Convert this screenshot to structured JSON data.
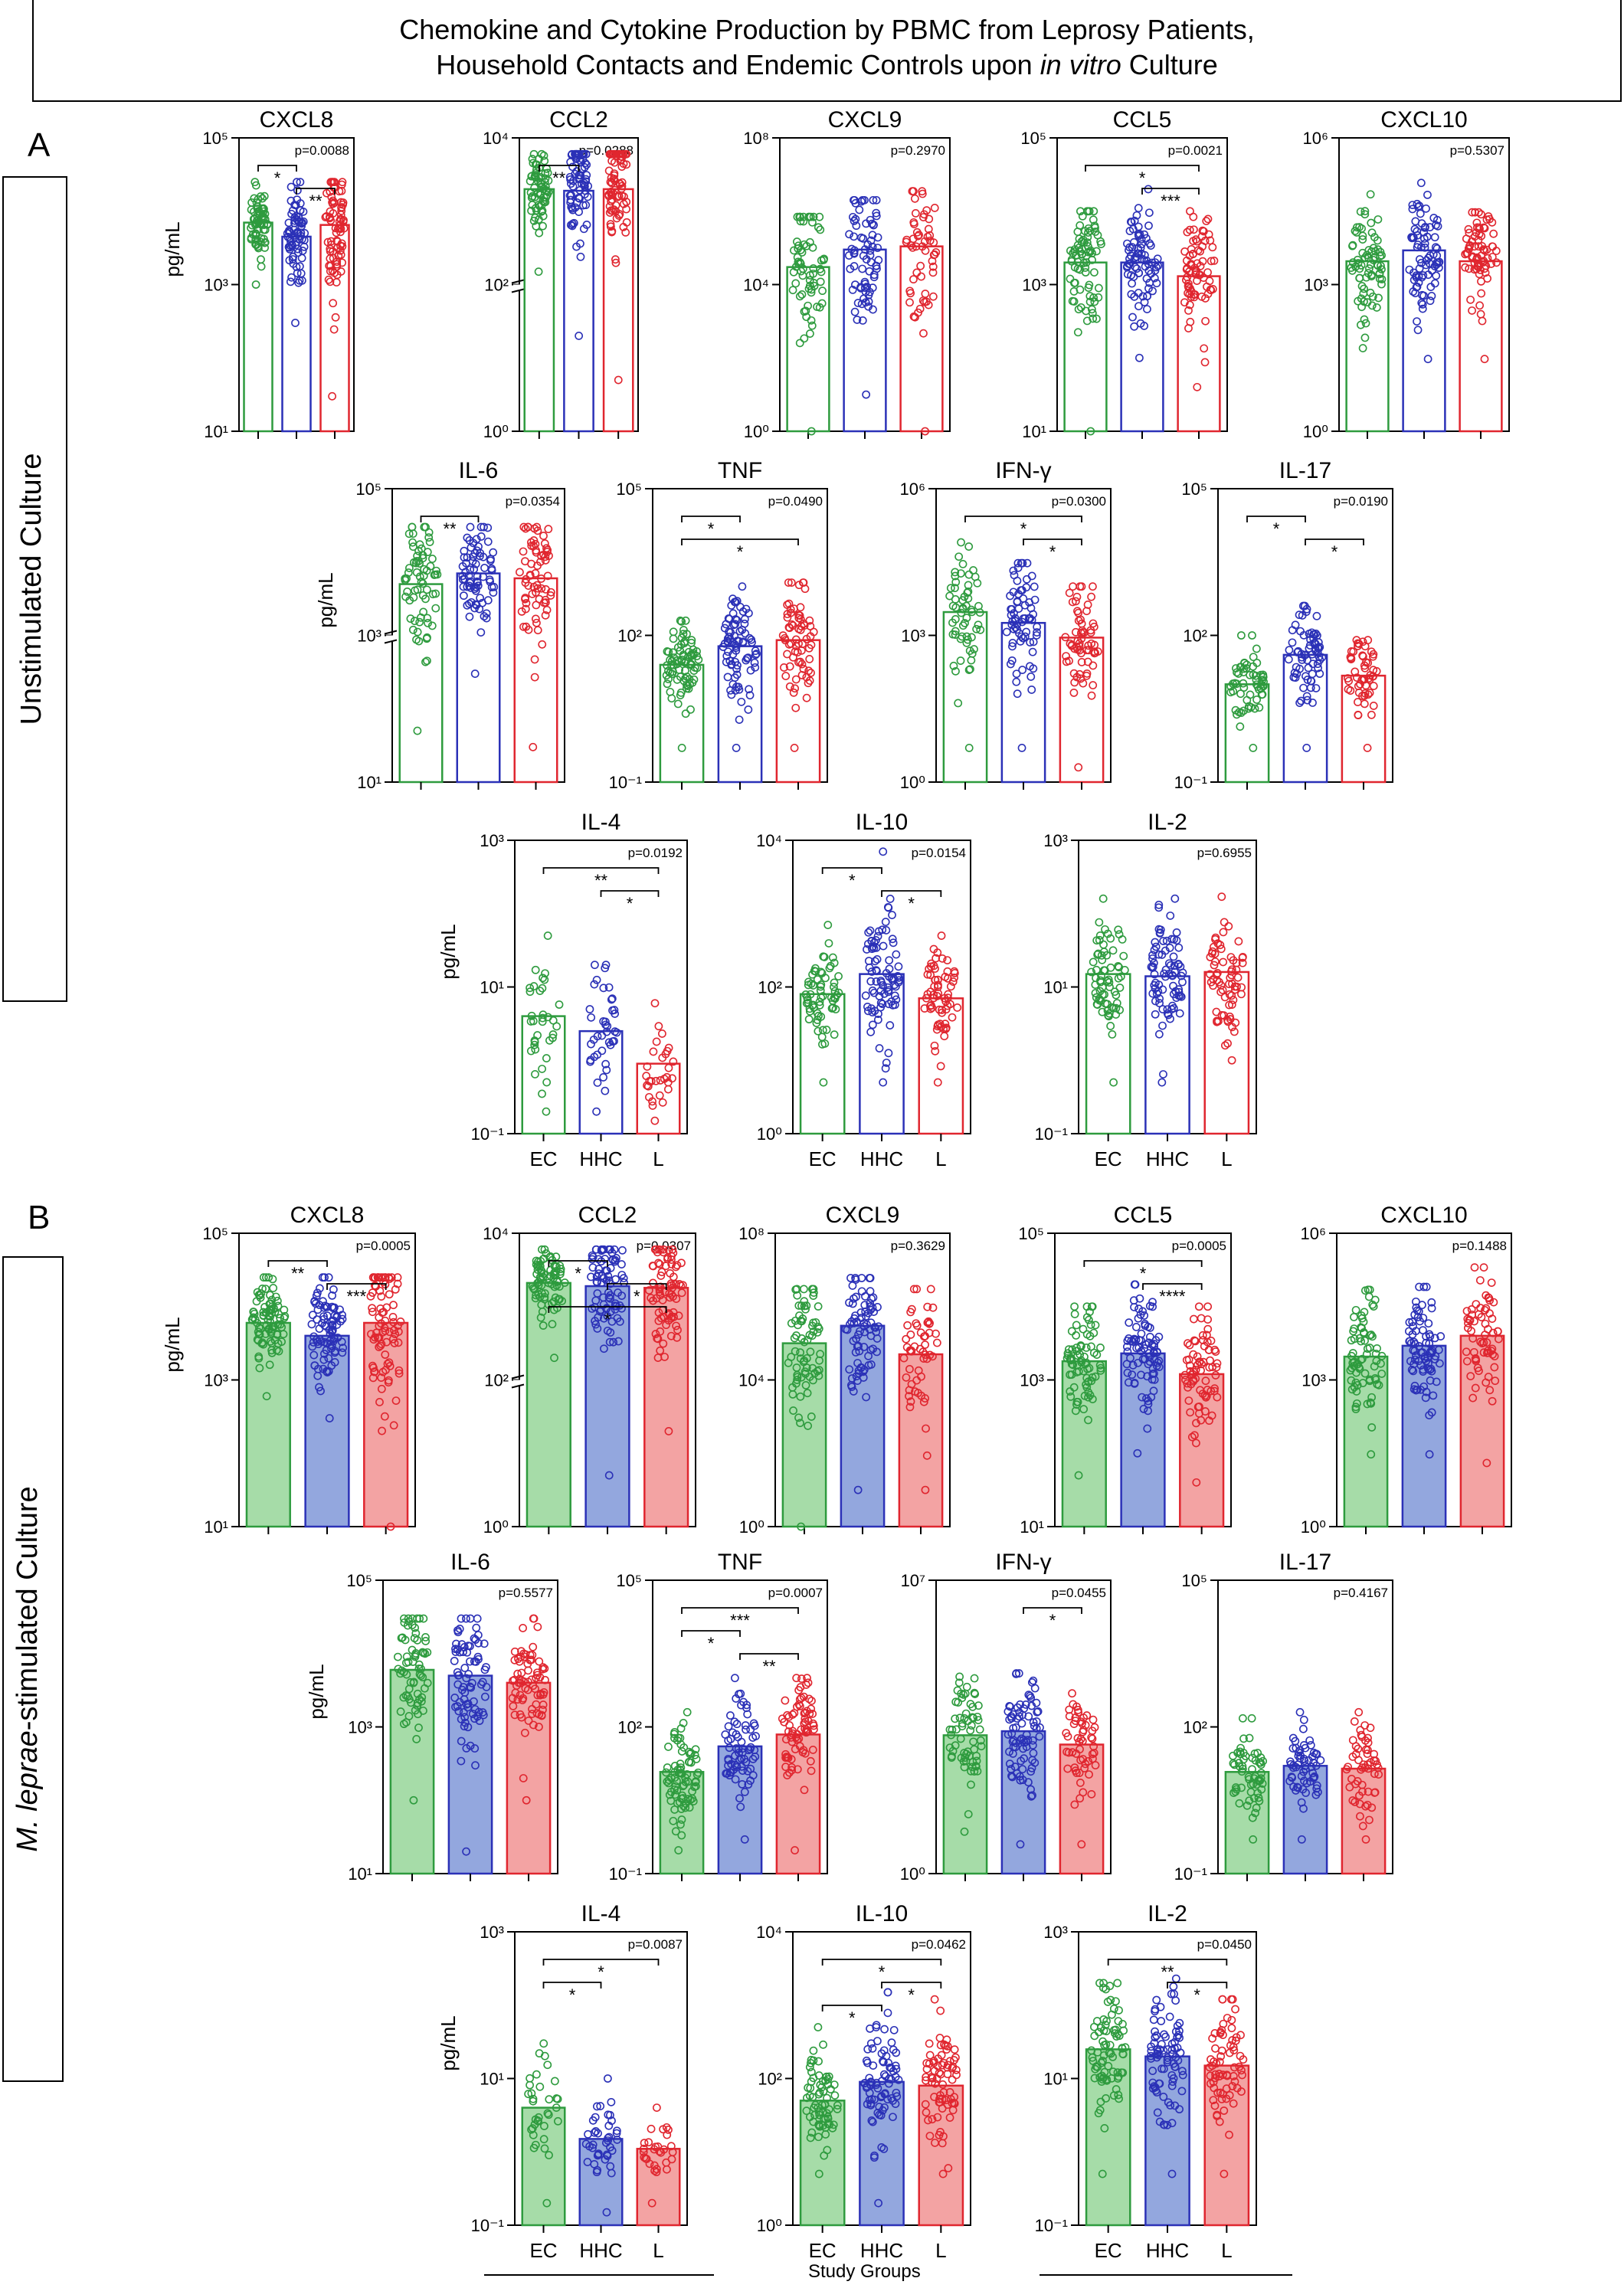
{
  "figure": {
    "title_line1": "Chemokine and Cytokine Production by PBMC from Leprosy Patients,",
    "title_line2_pre": "Household Contacts and Endemic Controls upon ",
    "title_line2_italic": "in vitro",
    "title_line2_post": " Culture",
    "section_a_letter": "A",
    "section_b_letter": "B",
    "section_a_label": "Unstimulated Culture",
    "section_b_label_italic": "M. leprae",
    "section_b_label_rest": "-stimulated Culture",
    "x_axis_title": "Study Groups",
    "y_unit": "pg/mL",
    "groups": [
      "EC",
      "HHC",
      "L"
    ],
    "colors": {
      "EC": "#2e9b3e",
      "HHC": "#2b31b7",
      "L": "#e0262f",
      "EC_fill": "#a6dca8",
      "HHC_fill": "#93a7de",
      "L_fill": "#f3a3a3"
    }
  },
  "chart_data": [
    {
      "type": "bar",
      "section": "A",
      "title": "CXCL8",
      "pval": "p=0.0088",
      "ymin_exp": 1,
      "ymax_exp": 5,
      "axis_break": false,
      "ylabel": true,
      "xlabels": false,
      "filled": false,
      "medians": [
        7000,
        4500,
        6500
      ],
      "spreads": [
        [
          1000,
          25000
        ],
        [
          300,
          25000
        ],
        [
          30,
          25000
        ]
      ],
      "n": [
        70,
        75,
        80
      ],
      "sig": [
        {
          "a": 0,
          "b": 1,
          "label": "*"
        },
        {
          "a": 1,
          "b": 2,
          "label": "**"
        }
      ]
    },
    {
      "type": "bar",
      "section": "A",
      "title": "CCL2",
      "pval": "p=0.0288",
      "ymin_exp": 0,
      "ymax_exp": 4,
      "axis_break": true,
      "ylabel": false,
      "xlabels": false,
      "filled": false,
      "medians": [
        2000,
        1900,
        2000
      ],
      "spreads": [
        [
          150,
          6000
        ],
        [
          20,
          6000
        ],
        [
          5,
          6000
        ]
      ],
      "n": [
        70,
        75,
        80
      ],
      "sig": [
        {
          "a": 0,
          "b": 1,
          "label": "**"
        }
      ]
    },
    {
      "type": "bar",
      "section": "A",
      "title": "CXCL9",
      "pval": "p=0.2970",
      "ymin_exp": 0,
      "ymax_exp": 8,
      "axis_break": false,
      "ylabel": false,
      "xlabels": false,
      "filled": false,
      "medians": [
        30000,
        90000,
        110000
      ],
      "spreads": [
        [
          1,
          700000
        ],
        [
          10,
          2000000
        ],
        [
          1,
          3500000
        ]
      ],
      "n": [
        70,
        75,
        55
      ],
      "sig": []
    },
    {
      "type": "bar",
      "section": "A",
      "title": "CCL5",
      "pval": "p=0.0021",
      "ymin_exp": 1,
      "ymax_exp": 5,
      "axis_break": false,
      "ylabel": false,
      "xlabels": false,
      "filled": false,
      "medians": [
        2000,
        2000,
        1300
      ],
      "spreads": [
        [
          10,
          10000
        ],
        [
          100,
          20000
        ],
        [
          40,
          10000
        ]
      ],
      "n": [
        80,
        80,
        75
      ],
      "sig": [
        {
          "a": 0,
          "b": 2,
          "label": "*"
        },
        {
          "a": 1,
          "b": 2,
          "label": "***"
        }
      ]
    },
    {
      "type": "bar",
      "section": "A",
      "title": "CXCL10",
      "pval": "p=0.5307",
      "ymin_exp": 0,
      "ymax_exp": 6,
      "axis_break": false,
      "ylabel": false,
      "xlabels": false,
      "filled": false,
      "medians": [
        3000,
        5000,
        3000
      ],
      "spreads": [
        [
          50,
          70000
        ],
        [
          30,
          120000
        ],
        [
          30,
          30000
        ]
      ],
      "n": [
        75,
        80,
        75
      ],
      "sig": []
    },
    {
      "type": "bar",
      "section": "A",
      "title": "IL-6",
      "pval": "p=0.0354",
      "ymin_exp": 1,
      "ymax_exp": 5,
      "axis_break": true,
      "ylabel": true,
      "xlabels": false,
      "filled": false,
      "medians": [
        5000,
        7000,
        6000
      ],
      "spreads": [
        [
          50,
          30000
        ],
        [
          300,
          30000
        ],
        [
          30,
          30000
        ]
      ],
      "n": [
        70,
        75,
        70
      ],
      "sig": [
        {
          "a": 0,
          "b": 1,
          "label": "**"
        }
      ]
    },
    {
      "type": "bar",
      "section": "A",
      "title": "TNF",
      "pval": "p=0.0490",
      "ymin_exp": -1,
      "ymax_exp": 5,
      "axis_break": false,
      "ylabel": false,
      "xlabels": false,
      "filled": false,
      "medians": [
        25,
        60,
        80
      ],
      "spreads": [
        [
          0.5,
          200
        ],
        [
          0.5,
          1000
        ],
        [
          0.5,
          1200
        ]
      ],
      "n": [
        80,
        80,
        70
      ],
      "sig": [
        {
          "a": 0,
          "b": 1,
          "label": "*"
        },
        {
          "a": 0,
          "b": 2,
          "label": "*"
        }
      ]
    },
    {
      "type": "bar",
      "section": "A",
      "title": "IFN-γ",
      "pval": "p=0.0300",
      "ymin_exp": 0,
      "ymax_exp": 6,
      "axis_break": false,
      "ylabel": false,
      "xlabels": false,
      "filled": false,
      "medians": [
        3000,
        1800,
        900
      ],
      "spreads": [
        [
          5,
          80000
        ],
        [
          5,
          30000
        ],
        [
          2,
          10000
        ]
      ],
      "n": [
        60,
        70,
        65
      ],
      "sig": [
        {
          "a": 0,
          "b": 2,
          "label": "*"
        },
        {
          "a": 1,
          "b": 2,
          "label": "*"
        }
      ]
    },
    {
      "type": "bar",
      "section": "A",
      "title": "IL-17",
      "pval": "p=0.0190",
      "ymin_exp": -1,
      "ymax_exp": 5,
      "axis_break": false,
      "ylabel": false,
      "xlabels": false,
      "filled": false,
      "medians": [
        10,
        40,
        15
      ],
      "spreads": [
        [
          0.5,
          100
        ],
        [
          0.5,
          400
        ],
        [
          0.5,
          80
        ]
      ],
      "n": [
        60,
        70,
        55
      ],
      "sig": [
        {
          "a": 0,
          "b": 1,
          "label": "*"
        },
        {
          "a": 1,
          "b": 2,
          "label": "*"
        }
      ]
    },
    {
      "type": "bar",
      "section": "A",
      "title": "IL-4",
      "pval": "p=0.0192",
      "ymin_exp": -1,
      "ymax_exp": 3,
      "axis_break": false,
      "ylabel": true,
      "xlabels": true,
      "filled": false,
      "medians": [
        4,
        2.5,
        0.9
      ],
      "spreads": [
        [
          0.2,
          50
        ],
        [
          0.2,
          20
        ],
        [
          0.15,
          6
        ]
      ],
      "n": [
        35,
        40,
        30
      ],
      "sig": [
        {
          "a": 0,
          "b": 2,
          "label": "**"
        },
        {
          "a": 1,
          "b": 2,
          "label": "*"
        }
      ]
    },
    {
      "type": "bar",
      "section": "A",
      "title": "IL-10",
      "pval": "p=0.0154",
      "ymin_exp": 0,
      "ymax_exp": 4,
      "axis_break": false,
      "ylabel": false,
      "xlabels": true,
      "filled": false,
      "medians": [
        80,
        150,
        70
      ],
      "spreads": [
        [
          5,
          700
        ],
        [
          5,
          7000
        ],
        [
          5,
          500
        ]
      ],
      "n": [
        65,
        85,
        65
      ],
      "sig": [
        {
          "a": 0,
          "b": 1,
          "label": "*"
        },
        {
          "a": 1,
          "b": 2,
          "label": "*"
        }
      ]
    },
    {
      "type": "bar",
      "section": "A",
      "title": "IL-2",
      "pval": "p=0.6955",
      "ymin_exp": -1,
      "ymax_exp": 3,
      "axis_break": false,
      "ylabel": false,
      "xlabels": true,
      "filled": false,
      "medians": [
        15,
        14,
        16
      ],
      "spreads": [
        [
          0.5,
          160
        ],
        [
          0.5,
          160
        ],
        [
          1,
          170
        ]
      ],
      "n": [
        70,
        80,
        70
      ],
      "sig": []
    },
    {
      "type": "bar",
      "section": "B",
      "title": "CXCL8",
      "pval": "p=0.0005",
      "ymin_exp": 1,
      "ymax_exp": 5,
      "axis_break": false,
      "ylabel": true,
      "xlabels": false,
      "filled": true,
      "medians": [
        6000,
        4000,
        6000
      ],
      "spreads": [
        [
          600,
          25000
        ],
        [
          300,
          25000
        ],
        [
          10,
          25000
        ]
      ],
      "n": [
        90,
        90,
        85
      ],
      "sig": [
        {
          "a": 0,
          "b": 1,
          "label": "**"
        },
        {
          "a": 1,
          "b": 2,
          "label": "***"
        }
      ]
    },
    {
      "type": "bar",
      "section": "B",
      "title": "CCL2",
      "pval": "p=0.0307",
      "ymin_exp": 0,
      "ymax_exp": 4,
      "axis_break": true,
      "ylabel": false,
      "xlabels": false,
      "filled": true,
      "medians": [
        2100,
        1900,
        1800
      ],
      "spreads": [
        [
          200,
          6000
        ],
        [
          5,
          6000
        ],
        [
          20,
          6000
        ]
      ],
      "n": [
        80,
        85,
        80
      ],
      "sig": [
        {
          "a": 0,
          "b": 1,
          "label": "*"
        },
        {
          "a": 1,
          "b": 2,
          "label": "*"
        },
        {
          "a": 0,
          "b": 2,
          "label": "*"
        }
      ]
    },
    {
      "type": "bar",
      "section": "B",
      "title": "CXCL9",
      "pval": "p=0.3629",
      "ymin_exp": 0,
      "ymax_exp": 8,
      "axis_break": false,
      "ylabel": false,
      "xlabels": false,
      "filled": true,
      "medians": [
        100000,
        300000,
        50000
      ],
      "spreads": [
        [
          1,
          3000000
        ],
        [
          10,
          6000000
        ],
        [
          10,
          3000000
        ]
      ],
      "n": [
        75,
        80,
        55
      ],
      "sig": []
    },
    {
      "type": "bar",
      "section": "B",
      "title": "CCL5",
      "pval": "p=0.0005",
      "ymin_exp": 1,
      "ymax_exp": 5,
      "axis_break": false,
      "ylabel": false,
      "xlabels": false,
      "filled": true,
      "medians": [
        1800,
        2300,
        1200
      ],
      "spreads": [
        [
          50,
          10000
        ],
        [
          100,
          20000
        ],
        [
          40,
          10000
        ]
      ],
      "n": [
        80,
        85,
        75
      ],
      "sig": [
        {
          "a": 0,
          "b": 2,
          "label": "*"
        },
        {
          "a": 1,
          "b": 2,
          "label": "****"
        }
      ]
    },
    {
      "type": "bar",
      "section": "B",
      "title": "CXCL10",
      "pval": "p=0.1488",
      "ymin_exp": 0,
      "ymax_exp": 6,
      "axis_break": false,
      "ylabel": false,
      "xlabels": false,
      "filled": true,
      "medians": [
        3000,
        5000,
        8000
      ],
      "spreads": [
        [
          30,
          70000
        ],
        [
          30,
          80000
        ],
        [
          20,
          200000
        ]
      ],
      "n": [
        75,
        80,
        65
      ],
      "sig": []
    },
    {
      "type": "bar",
      "section": "B",
      "title": "IL-6",
      "pval": "p=0.5577",
      "ymin_exp": 1,
      "ymax_exp": 5,
      "axis_break": false,
      "ylabel": true,
      "xlabels": false,
      "filled": true,
      "medians": [
        6000,
        5000,
        4000
      ],
      "spreads": [
        [
          100,
          30000
        ],
        [
          20,
          30000
        ],
        [
          100,
          30000
        ]
      ],
      "n": [
        70,
        80,
        75
      ],
      "sig": []
    },
    {
      "type": "bar",
      "section": "B",
      "title": "TNF",
      "pval": "p=0.0007",
      "ymin_exp": -1,
      "ymax_exp": 5,
      "axis_break": false,
      "ylabel": false,
      "xlabels": false,
      "filled": true,
      "medians": [
        12,
        40,
        70
      ],
      "spreads": [
        [
          0.3,
          200
        ],
        [
          0.5,
          1000
        ],
        [
          0.3,
          1000
        ]
      ],
      "n": [
        80,
        70,
        75
      ],
      "sig": [
        {
          "a": 0,
          "b": 2,
          "label": "***"
        },
        {
          "a": 0,
          "b": 1,
          "label": "*"
        },
        {
          "a": 1,
          "b": 2,
          "label": "**"
        }
      ]
    },
    {
      "type": "bar",
      "section": "B",
      "title": "IFN-γ",
      "pval": "p=0.0455",
      "ymin_exp": 0,
      "ymax_exp": 7,
      "axis_break": false,
      "ylabel": false,
      "xlabels": false,
      "filled": true,
      "medians": [
        2000,
        2500,
        1200
      ],
      "spreads": [
        [
          10,
          50000
        ],
        [
          5,
          60000
        ],
        [
          5,
          20000
        ]
      ],
      "n": [
        65,
        80,
        55
      ],
      "sig": [
        {
          "a": 1,
          "b": 2,
          "label": "*"
        }
      ]
    },
    {
      "type": "bar",
      "section": "B",
      "title": "IL-17",
      "pval": "p=0.4167",
      "ymin_exp": -1,
      "ymax_exp": 5,
      "axis_break": false,
      "ylabel": false,
      "xlabels": false,
      "filled": true,
      "medians": [
        12,
        16,
        14
      ],
      "spreads": [
        [
          0.5,
          150
        ],
        [
          0.5,
          200
        ],
        [
          0.5,
          200
        ]
      ],
      "n": [
        60,
        60,
        55
      ],
      "sig": []
    },
    {
      "type": "bar",
      "section": "B",
      "title": "IL-4",
      "pval": "p=0.0087",
      "ymin_exp": -1,
      "ymax_exp": 3,
      "axis_break": false,
      "ylabel": true,
      "xlabels": true,
      "filled": true,
      "medians": [
        4,
        1.5,
        1.1
      ],
      "spreads": [
        [
          0.2,
          30
        ],
        [
          0.15,
          10
        ],
        [
          0.2,
          4
        ]
      ],
      "n": [
        35,
        40,
        30
      ],
      "sig": [
        {
          "a": 0,
          "b": 2,
          "label": "*"
        },
        {
          "a": 0,
          "b": 1,
          "label": "*"
        }
      ]
    },
    {
      "type": "bar",
      "section": "B",
      "title": "IL-10",
      "pval": "p=0.0462",
      "ymin_exp": 0,
      "ymax_exp": 4,
      "axis_break": false,
      "ylabel": false,
      "xlabels": true,
      "filled": true,
      "medians": [
        50,
        90,
        80
      ],
      "spreads": [
        [
          5,
          500
        ],
        [
          2,
          1500
        ],
        [
          5,
          1200
        ]
      ],
      "n": [
        70,
        80,
        75
      ],
      "sig": [
        {
          "a": 0,
          "b": 2,
          "label": "*"
        },
        {
          "a": 1,
          "b": 2,
          "label": "*"
        },
        {
          "a": 0,
          "b": 1,
          "label": "*"
        }
      ]
    },
    {
      "type": "bar",
      "section": "B",
      "title": "IL-2",
      "pval": "p=0.0450",
      "ymin_exp": -1,
      "ymax_exp": 3,
      "axis_break": false,
      "ylabel": false,
      "xlabels": true,
      "filled": true,
      "medians": [
        25,
        20,
        15
      ],
      "spreads": [
        [
          0.5,
          200
        ],
        [
          0.5,
          230
        ],
        [
          0.5,
          120
        ]
      ],
      "n": [
        80,
        85,
        70
      ],
      "sig": [
        {
          "a": 0,
          "b": 2,
          "label": "**"
        },
        {
          "a": 1,
          "b": 2,
          "label": "*"
        }
      ]
    }
  ]
}
